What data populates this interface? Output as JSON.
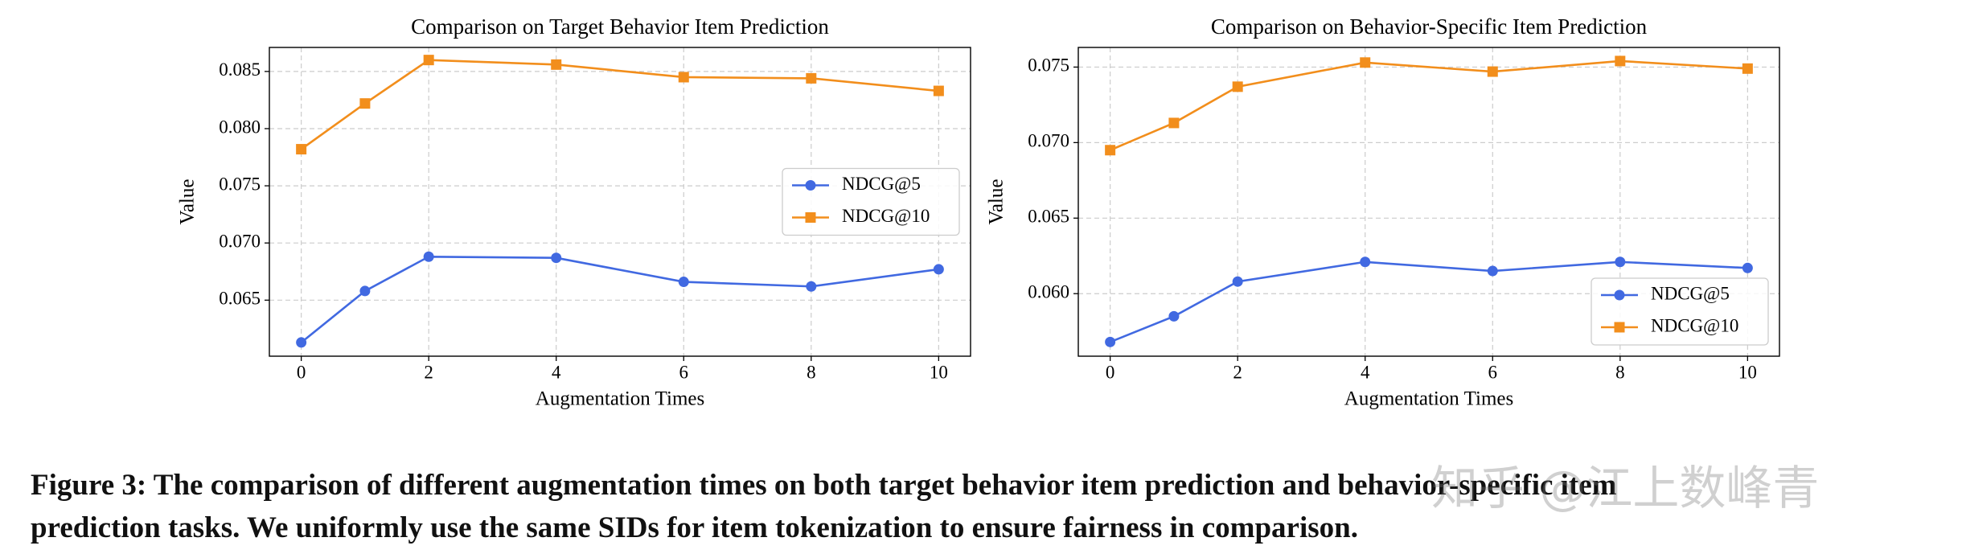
{
  "chart_data": [
    {
      "type": "line",
      "title": "Comparison on Target Behavior Item Prediction",
      "xlabel": "Augmentation Times",
      "ylabel": "Value",
      "x": [
        0,
        1,
        2,
        4,
        6,
        8,
        10
      ],
      "series": [
        {
          "name": "NDCG@5",
          "color": "#4169e1",
          "marker": "circle",
          "values": [
            0.0613,
            0.0658,
            0.0688,
            0.0687,
            0.0666,
            0.0662,
            0.0677
          ]
        },
        {
          "name": "NDCG@10",
          "color": "#f28e1c",
          "marker": "square",
          "values": [
            0.0782,
            0.0822,
            0.086,
            0.0856,
            0.0845,
            0.0844,
            0.0833
          ]
        }
      ],
      "xlim": [
        -0.5,
        10.5
      ],
      "xticks": [
        0,
        2,
        4,
        6,
        8,
        10
      ],
      "ylim": [
        0.0601,
        0.0871
      ],
      "yticks": [
        0.065,
        {
          "value": 0.07,
          "label": "0.070"
        },
        0.075,
        {
          "value": 0.08,
          "label": "0.080"
        },
        0.085
      ],
      "grid": true,
      "legend": "center right"
    },
    {
      "type": "line",
      "title": "Comparison on Behavior-Specific Item Prediction",
      "xlabel": "Augmentation Times",
      "ylabel": "Value",
      "x": [
        0,
        1,
        2,
        4,
        6,
        8,
        10
      ],
      "series": [
        {
          "name": "NDCG@5",
          "color": "#4169e1",
          "marker": "circle",
          "values": [
            0.0568,
            0.0585,
            0.0608,
            0.0621,
            0.0615,
            0.0621,
            0.0617
          ]
        },
        {
          "name": "NDCG@10",
          "color": "#f28e1c",
          "marker": "square",
          "values": [
            0.0695,
            0.0713,
            0.0737,
            0.0753,
            0.0747,
            0.0754,
            0.0749
          ]
        }
      ],
      "xlim": [
        -0.5,
        10.5
      ],
      "xticks": [
        0,
        2,
        4,
        6,
        8,
        10
      ],
      "ylim": [
        0.05586,
        0.0763
      ],
      "yticks": [
        {
          "value": 0.06,
          "label": "0.060"
        },
        0.065,
        {
          "value": 0.07,
          "label": "0.070"
        },
        0.075
      ],
      "grid": true,
      "legend": "lower right"
    }
  ],
  "caption": [
    "Figure 3: The comparison of different augmentation times on both target behavior item prediction and behavior-specific item",
    "prediction tasks. We uniformly use the same SIDs for item tokenization to ensure fairness in comparison."
  ],
  "watermark": "知乎 @江上数峰青"
}
